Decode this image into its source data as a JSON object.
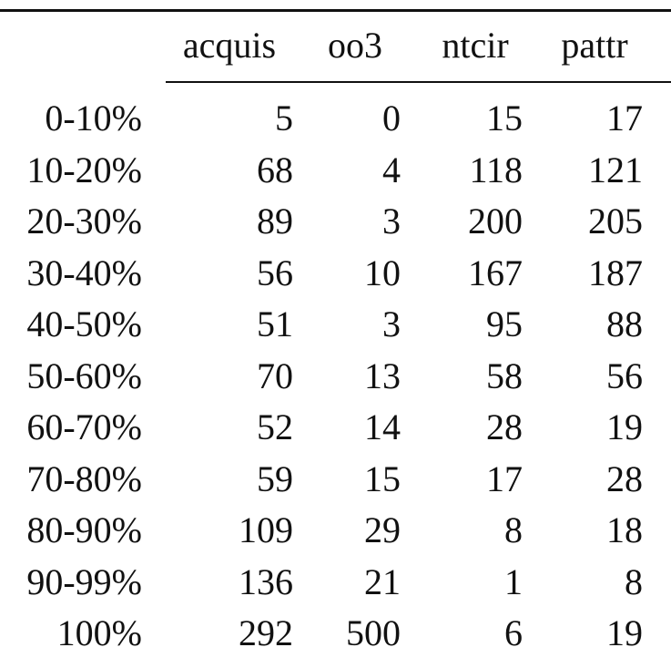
{
  "table": {
    "columns": [
      "",
      "acquis",
      "oo3",
      "ntcir",
      "pattr"
    ],
    "rows": [
      {
        "label": "0-10%",
        "values": [
          "5",
          "0",
          "15",
          "17"
        ]
      },
      {
        "label": "10-20%",
        "values": [
          "68",
          "4",
          "118",
          "121"
        ]
      },
      {
        "label": "20-30%",
        "values": [
          "89",
          "3",
          "200",
          "205"
        ]
      },
      {
        "label": "30-40%",
        "values": [
          "56",
          "10",
          "167",
          "187"
        ]
      },
      {
        "label": "40-50%",
        "values": [
          "51",
          "3",
          "95",
          "88"
        ]
      },
      {
        "label": "50-60%",
        "values": [
          "70",
          "13",
          "58",
          "56"
        ]
      },
      {
        "label": "60-70%",
        "values": [
          "52",
          "14",
          "28",
          "19"
        ]
      },
      {
        "label": "70-80%",
        "values": [
          "59",
          "15",
          "17",
          "28"
        ]
      },
      {
        "label": "80-90%",
        "values": [
          "109",
          "29",
          "8",
          "18"
        ]
      },
      {
        "label": "90-99%",
        "values": [
          "136",
          "21",
          "1",
          "8"
        ]
      },
      {
        "label": "100%",
        "values": [
          "292",
          "500",
          "6",
          "19"
        ]
      }
    ]
  },
  "chart_data": {
    "type": "table",
    "columns": [
      "acquis",
      "oo3",
      "ntcir",
      "pattr"
    ],
    "row_labels": [
      "0-10%",
      "10-20%",
      "20-30%",
      "30-40%",
      "40-50%",
      "50-60%",
      "60-70%",
      "70-80%",
      "80-90%",
      "90-99%",
      "100%"
    ],
    "values": [
      [
        5,
        0,
        15,
        17
      ],
      [
        68,
        4,
        118,
        121
      ],
      [
        89,
        3,
        200,
        205
      ],
      [
        56,
        10,
        167,
        187
      ],
      [
        51,
        3,
        95,
        88
      ],
      [
        70,
        13,
        58,
        56
      ],
      [
        52,
        14,
        28,
        19
      ],
      [
        59,
        15,
        17,
        28
      ],
      [
        109,
        29,
        8,
        18
      ],
      [
        136,
        21,
        1,
        8
      ],
      [
        292,
        500,
        6,
        19
      ]
    ]
  }
}
